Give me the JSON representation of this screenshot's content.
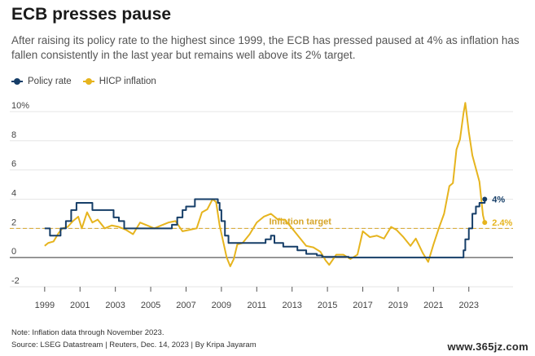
{
  "title": "ECB presses pause",
  "subtitle": "After raising its policy rate to the highest since 1999, the ECB has pressed paused at 4% as inflation has fallen consistently in the last year but remains well above its 2% target.",
  "legend": {
    "policy": "Policy rate",
    "hicp": "HICP inflation"
  },
  "note": "Note: Inflation data through November 2023.",
  "source": "Source: LSEG Datastream | Reuters, Dec. 14, 2023 | By Kripa Jayaram",
  "watermark": "www.365jz.com",
  "colors": {
    "policy": "#163e68",
    "hicp": "#e6b41e",
    "target": "#d6a52a",
    "zero": "#333333",
    "grid": "#e6e6e6"
  },
  "chart_data": {
    "type": "line",
    "title": "ECB presses pause",
    "xlabel": "",
    "ylabel": "",
    "xlim": [
      1998.5,
      2025.5
    ],
    "ylim": [
      -2,
      10.5
    ],
    "y_ticks": [
      -2,
      0,
      2,
      4,
      6,
      8,
      10
    ],
    "y_tick_labels": [
      "-2",
      "0",
      "2",
      "4",
      "6",
      "8",
      "10%"
    ],
    "x_ticks": [
      1999,
      2001,
      2003,
      2005,
      2007,
      2009,
      2011,
      2013,
      2015,
      2017,
      2019,
      2021,
      2023
    ],
    "x_tick_labels": [
      "1999",
      "2001",
      "2003",
      "2005",
      "2007",
      "2009",
      "2011",
      "2013",
      "2015",
      "2017",
      "2019",
      "2021",
      "2023"
    ],
    "target": {
      "value": 2,
      "label": "Inflation target"
    },
    "end_labels": {
      "policy": "4%",
      "hicp": "2.4%"
    },
    "series": [
      {
        "name": "Policy rate",
        "x": [
          1999.0,
          1999.3,
          1999.9,
          2000.2,
          2000.5,
          2000.8,
          2001.4,
          2001.7,
          2001.9,
          2002.9,
          2003.2,
          2003.5,
          2005.9,
          2006.2,
          2006.5,
          2006.8,
          2007.0,
          2007.5,
          2008.5,
          2008.8,
          2008.9,
          2009.0,
          2009.2,
          2009.4,
          2011.3,
          2011.5,
          2011.8,
          2012.0,
          2012.5,
          2013.3,
          2013.8,
          2014.4,
          2014.7,
          2015.0,
          2016.2,
          2020.0,
          2022.5,
          2022.7,
          2022.8,
          2023.0,
          2023.2,
          2023.4,
          2023.6,
          2023.9
        ],
        "values": [
          2.0,
          1.5,
          2.0,
          2.5,
          3.25,
          3.75,
          3.75,
          3.25,
          3.25,
          2.75,
          2.5,
          2.0,
          2.0,
          2.25,
          2.75,
          3.25,
          3.5,
          4.0,
          4.0,
          3.75,
          3.25,
          2.5,
          1.5,
          1.0,
          1.0,
          1.25,
          1.5,
          1.0,
          0.75,
          0.5,
          0.25,
          0.15,
          0.05,
          0.05,
          0.0,
          0.0,
          0.0,
          0.5,
          1.25,
          2.0,
          3.0,
          3.5,
          3.75,
          4.0
        ]
      },
      {
        "name": "HICP inflation",
        "x": [
          1999.0,
          1999.2,
          1999.5,
          1999.8,
          2000.0,
          2000.3,
          2000.6,
          2000.9,
          2001.1,
          2001.4,
          2001.7,
          2002.0,
          2002.4,
          2002.8,
          2003.2,
          2003.6,
          2004.0,
          2004.4,
          2004.8,
          2005.2,
          2005.6,
          2006.0,
          2006.4,
          2006.8,
          2007.2,
          2007.6,
          2007.9,
          2008.2,
          2008.5,
          2008.7,
          2008.9,
          2009.1,
          2009.3,
          2009.5,
          2009.7,
          2009.9,
          2010.2,
          2010.6,
          2011.0,
          2011.4,
          2011.8,
          2012.2,
          2012.6,
          2013.0,
          2013.4,
          2013.8,
          2014.2,
          2014.6,
          2014.9,
          2015.1,
          2015.5,
          2015.9,
          2016.3,
          2016.7,
          2017.0,
          2017.4,
          2017.8,
          2018.2,
          2018.6,
          2018.9,
          2019.3,
          2019.7,
          2020.0,
          2020.4,
          2020.7,
          2021.0,
          2021.3,
          2021.6,
          2021.9,
          2022.1,
          2022.3,
          2022.5,
          2022.7,
          2022.8,
          2023.0,
          2023.2,
          2023.4,
          2023.6,
          2023.8,
          2023.9
        ],
        "values": [
          0.8,
          1.0,
          1.1,
          1.7,
          2.0,
          2.1,
          2.5,
          2.8,
          2.0,
          3.1,
          2.4,
          2.6,
          2.0,
          2.2,
          2.1,
          1.9,
          1.6,
          2.4,
          2.2,
          2.0,
          2.2,
          2.4,
          2.5,
          1.8,
          1.9,
          2.0,
          3.1,
          3.3,
          4.0,
          3.8,
          2.2,
          1.1,
          0.0,
          -0.6,
          -0.1,
          0.9,
          1.0,
          1.6,
          2.4,
          2.8,
          3.0,
          2.6,
          2.6,
          2.0,
          1.4,
          0.8,
          0.7,
          0.4,
          -0.2,
          -0.5,
          0.2,
          0.2,
          -0.1,
          0.2,
          1.8,
          1.4,
          1.5,
          1.3,
          2.1,
          1.9,
          1.4,
          0.8,
          1.3,
          0.3,
          -0.3,
          0.9,
          2.0,
          3.0,
          4.9,
          5.1,
          7.4,
          8.1,
          9.9,
          10.6,
          8.6,
          7.0,
          6.1,
          5.2,
          2.9,
          2.4
        ]
      }
    ]
  }
}
